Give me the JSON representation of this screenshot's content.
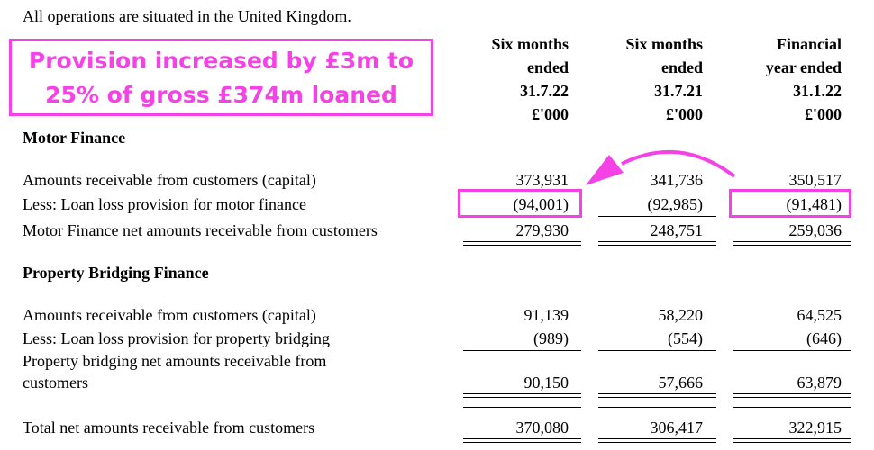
{
  "intro": "All operations are situated in the United Kingdom.",
  "columns": [
    {
      "line1": "Six months",
      "line2": "ended",
      "line3": "31.7.22",
      "line4": "£'000"
    },
    {
      "line1": "Six months",
      "line2": "ended",
      "line3": "31.7.21",
      "line4": "£'000"
    },
    {
      "line1": "Financial",
      "line2": "year ended",
      "line3": "31.1.22",
      "line4": "£'000"
    }
  ],
  "annotation": {
    "line1": "Provision increased by £3m to",
    "line2": "25% of gross £374m loaned",
    "color": "#f542e6"
  },
  "motor": {
    "heading": "Motor Finance",
    "rows": [
      {
        "label": "Amounts receivable from customers (capital)",
        "values": [
          "373,931",
          "341,736",
          "350,517"
        ]
      },
      {
        "label": "Less: Loan loss provision for motor finance",
        "values": [
          "(94,001)",
          "(92,985)",
          "(91,481)"
        ]
      },
      {
        "label": "Motor Finance net amounts receivable from customers",
        "values": [
          "279,930",
          "248,751",
          "259,036"
        ]
      }
    ]
  },
  "property": {
    "heading": "Property Bridging Finance",
    "rows": [
      {
        "label": "Amounts receivable from customers (capital)",
        "values": [
          "91,139",
          "58,220",
          "64,525"
        ]
      },
      {
        "label": "Less: Loan loss provision for property bridging",
        "values": [
          "(989)",
          "(554)",
          "(646)"
        ]
      },
      {
        "label_line1": "Property bridging net amounts receivable from",
        "label_line2": "customers",
        "values": [
          "90,150",
          "57,666",
          "63,879"
        ]
      }
    ]
  },
  "total": {
    "label": "Total net amounts receivable from customers",
    "values": [
      "370,080",
      "306,417",
      "322,915"
    ]
  }
}
